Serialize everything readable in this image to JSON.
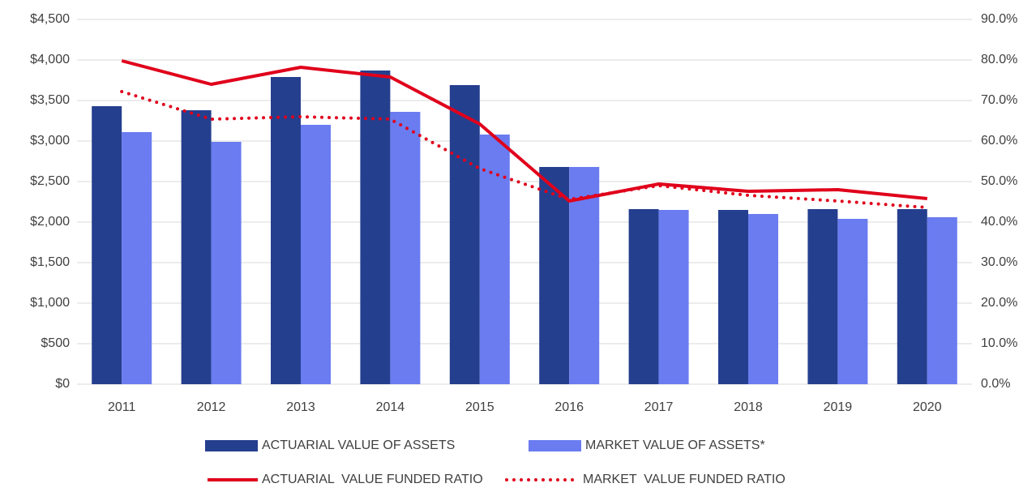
{
  "chart_data": {
    "type": "bar",
    "categories": [
      "2011",
      "2012",
      "2013",
      "2014",
      "2015",
      "2016",
      "2017",
      "2018",
      "2019",
      "2020"
    ],
    "series": [
      {
        "name": "ACTUARIAL VALUE OF ASSETS",
        "type": "bar",
        "color": "#253f8f",
        "values": [
          3430,
          3380,
          3790,
          3870,
          3690,
          2680,
          2160,
          2150,
          2160,
          2160
        ]
      },
      {
        "name": "MARKET VALUE OF ASSETS*",
        "type": "bar",
        "color": "#6a7cf0",
        "values": [
          3110,
          2990,
          3200,
          3360,
          3080,
          2680,
          2150,
          2100,
          2040,
          2060
        ]
      },
      {
        "name": "ACTUARIAL  VALUE FUNDED RATIO",
        "type": "line",
        "axis": "y2",
        "color": "#e0001b",
        "line_style": "solid",
        "values": [
          79.8,
          74.0,
          78.2,
          75.8,
          64.2,
          45.2,
          49.4,
          47.6,
          48.0,
          45.8
        ]
      },
      {
        "name": "MARKET  VALUE FUNDED RATIO",
        "type": "line",
        "axis": "y2",
        "color": "#e0001b",
        "line_style": "dotted",
        "values": [
          72.2,
          65.4,
          66.0,
          65.4,
          53.2,
          45.6,
          49.0,
          46.6,
          45.2,
          43.6
        ]
      }
    ],
    "ylim": [
      0,
      4500
    ],
    "yticks": [
      {
        "value": 0,
        "label": "$0"
      },
      {
        "value": 500,
        "label": "$500"
      },
      {
        "value": 1000,
        "label": "$1,000"
      },
      {
        "value": 1500,
        "label": "$1,500"
      },
      {
        "value": 2000,
        "label": "$2,000"
      },
      {
        "value": 2500,
        "label": "$2,500"
      },
      {
        "value": 3000,
        "label": "$3,000"
      },
      {
        "value": 3500,
        "label": "$3,500"
      },
      {
        "value": 4000,
        "label": "$4,000"
      },
      {
        "value": 4500,
        "label": "$4,500"
      }
    ],
    "y2lim": [
      0,
      90
    ],
    "y2ticks": [
      {
        "value": 0,
        "label": "0.0%"
      },
      {
        "value": 10,
        "label": "10.0%"
      },
      {
        "value": 20,
        "label": "20.0%"
      },
      {
        "value": 30,
        "label": "30.0%"
      },
      {
        "value": 40,
        "label": "40.0%"
      },
      {
        "value": 50,
        "label": "50.0%"
      },
      {
        "value": 60,
        "label": "60.0%"
      },
      {
        "value": 70,
        "label": "70.0%"
      },
      {
        "value": 80,
        "label": "80.0%"
      },
      {
        "value": 90,
        "label": "90.0%"
      }
    ],
    "grid": true,
    "legend": "bottom"
  }
}
